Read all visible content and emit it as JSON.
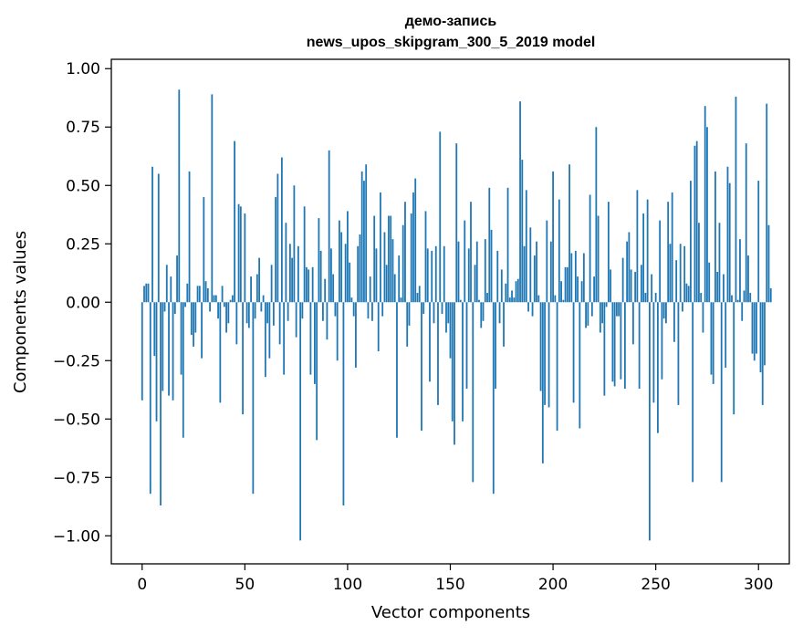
{
  "chart_data": {
    "type": "bar",
    "title_line1": "демо-запись",
    "title_line2": "news_upos_skipgram_300_5_2019 model",
    "xlabel": "Vector components",
    "ylabel": "Components values",
    "xlim": [
      -15,
      315
    ],
    "ylim": [
      -1.12,
      1.04
    ],
    "xticks": [
      0,
      50,
      100,
      150,
      200,
      250,
      300
    ],
    "xtick_labels": [
      "0",
      "50",
      "100",
      "150",
      "200",
      "250",
      "300"
    ],
    "yticks": [
      -1.0,
      -0.75,
      -0.5,
      -0.25,
      0.0,
      0.25,
      0.5,
      0.75,
      1.0
    ],
    "ytick_labels": [
      "−1.00",
      "−0.75",
      "−0.50",
      "−0.25",
      "0.00",
      "0.25",
      "0.50",
      "0.75",
      "1.00"
    ],
    "bar_color": "#1f77b4",
    "grid": false,
    "values": [
      -0.42,
      0.07,
      0.08,
      0.08,
      -0.82,
      0.58,
      -0.23,
      -0.51,
      0.55,
      -0.87,
      -0.38,
      -0.04,
      0.16,
      -0.4,
      0.11,
      -0.42,
      -0.05,
      0.2,
      0.91,
      -0.31,
      -0.58,
      -0.02,
      0.08,
      0.56,
      -0.14,
      -0.19,
      -0.13,
      0.07,
      0.07,
      -0.24,
      0.45,
      0.09,
      0.06,
      -0.04,
      0.89,
      0.03,
      0.03,
      -0.07,
      -0.43,
      0.07,
      -0.02,
      -0.13,
      -0.09,
      0.01,
      0.03,
      0.69,
      -0.18,
      0.42,
      0.41,
      -0.48,
      0.38,
      -0.09,
      -0.11,
      0.11,
      -0.82,
      -0.07,
      0.12,
      0.19,
      -0.04,
      0.03,
      -0.32,
      -0.09,
      -0.24,
      0.16,
      -0.1,
      0.45,
      0.55,
      -0.18,
      0.62,
      -0.31,
      0.34,
      -0.08,
      0.25,
      0.19,
      0.5,
      -0.15,
      0.24,
      -1.02,
      -0.07,
      0.41,
      0.15,
      0.14,
      -0.31,
      0.15,
      -0.35,
      -0.59,
      0.36,
      0.22,
      -0.08,
      0.1,
      -0.16,
      0.65,
      0.23,
      0.12,
      -0.06,
      -0.25,
      0.35,
      0.3,
      -0.87,
      0.25,
      0.39,
      0.17,
      0.02,
      -0.06,
      -0.28,
      0.24,
      0.29,
      0.56,
      0.52,
      0.59,
      -0.07,
      0.11,
      -0.08,
      0.37,
      0.23,
      -0.21,
      0.47,
      -0.06,
      0.3,
      0.16,
      0.37,
      0.37,
      0.27,
      0.12,
      -0.58,
      0.2,
      0.02,
      0.33,
      0.43,
      -0.19,
      -0.1,
      0.38,
      0.47,
      0.53,
      0.04,
      0.07,
      -0.55,
      -0.05,
      0.39,
      0.23,
      -0.34,
      0.22,
      -0.09,
      0.24,
      -0.44,
      0.73,
      -0.05,
      0.24,
      -0.13,
      -0.09,
      -0.24,
      -0.51,
      -0.61,
      0.68,
      0.26,
      0.01,
      -0.51,
      0.35,
      -0.37,
      0.23,
      0.43,
      -0.77,
      0.16,
      0.26,
      0.01,
      -0.11,
      -0.08,
      0.27,
      0.04,
      0.49,
      0.31,
      -0.82,
      -0.37,
      0.22,
      -0.09,
      0.14,
      -0.19,
      0.08,
      0.49,
      0.02,
      0.05,
      0.02,
      0.09,
      0.1,
      0.86,
      0.61,
      0.24,
      0.48,
      -0.04,
      0.32,
      -0.06,
      0.2,
      0.26,
      0.03,
      -0.38,
      -0.69,
      -0.44,
      0.35,
      -0.45,
      0.26,
      0.56,
      0.03,
      -0.55,
      0.44,
      0.09,
      0.01,
      0.15,
      0.15,
      0.59,
      0.21,
      -0.43,
      0.22,
      0.11,
      -0.54,
      0.09,
      0.21,
      -0.11,
      -0.1,
      0.46,
      -0.06,
      0.11,
      0.75,
      0.37,
      -0.13,
      -0.09,
      -0.4,
      -0.02,
      0.43,
      0.14,
      -0.34,
      -0.36,
      -0.06,
      -0.06,
      -0.33,
      0.19,
      -0.37,
      0.26,
      0.3,
      0.14,
      -0.18,
      0.13,
      0.48,
      -0.37,
      0.16,
      0.38,
      0.04,
      0.44,
      -1.02,
      0.12,
      -0.43,
      0.04,
      -0.56,
      0.35,
      -0.33,
      -0.07,
      -0.09,
      0.43,
      0.25,
      0.47,
      -0.17,
      0.18,
      -0.44,
      0.25,
      -0.04,
      0.24,
      0.08,
      0.07,
      0.52,
      -0.77,
      0.67,
      0.69,
      0.34,
      0.04,
      -0.13,
      0.84,
      0.75,
      0.17,
      -0.31,
      -0.35,
      0.56,
      0.13,
      0.34,
      -0.77,
      0.12,
      -0.28,
      0.58,
      0.51,
      0.03,
      -0.48,
      0.88,
      0.01,
      0.27,
      -0.08,
      0.05,
      0.68,
      0.2,
      0.04,
      -0.22,
      -0.25,
      -0.22,
      0.52,
      -0.3,
      -0.44,
      -0.27,
      0.85,
      0.33,
      0.06
    ]
  }
}
